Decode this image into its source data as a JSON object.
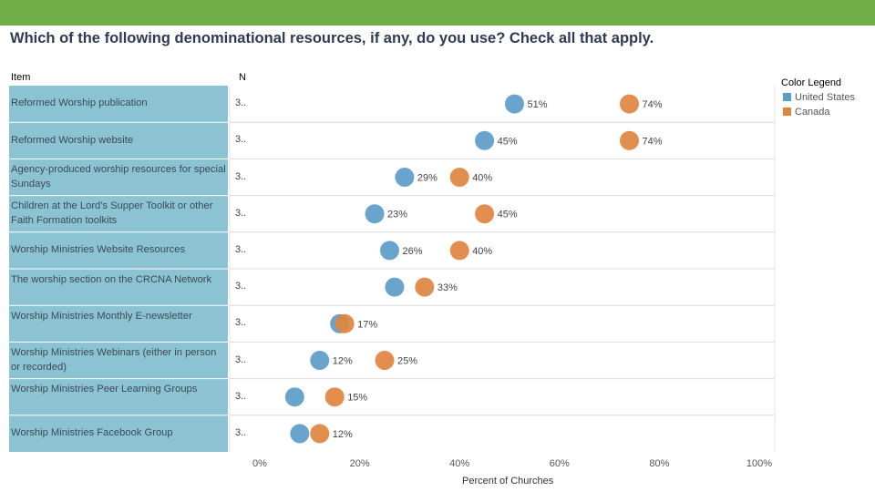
{
  "header": {
    "title": "Which of the following denominational resources, if any, do you use? Check all that apply."
  },
  "table": {
    "item_header": "Item",
    "n_header": "N"
  },
  "legend": {
    "title": "Color Legend",
    "entries": [
      {
        "name": "United States",
        "color": "#5b9cc8"
      },
      {
        "name": "Canada",
        "color": "#e0843f"
      }
    ]
  },
  "chart_data": {
    "type": "scatter",
    "title": "Which of the following denominational resources, if any, do you use? Check all that apply.",
    "xlabel": "Percent of Churches",
    "ylabel": "Item",
    "xlim": [
      0,
      100
    ],
    "x_ticks": [
      "0%",
      "20%",
      "40%",
      "60%",
      "80%",
      "100%"
    ],
    "categories": [
      "Reformed Worship publication",
      "Reformed Worship website",
      "Agency-produced worship resources for special Sundays",
      "Children at the Lord's Supper Toolkit or other Faith Formation toolkits",
      "Worship Ministries Website Resources",
      "The worship section on the CRCNA Network",
      "Worship Ministries Monthly E-newsletter",
      "Worship Ministries Webinars (either in person or recorded)",
      "Worship Ministries Peer Learning Groups",
      "Worship Ministries Facebook Group"
    ],
    "n_values": [
      "3..",
      "3..",
      "3..",
      "3..",
      "3..",
      "3..",
      "3..",
      "3..",
      "3..",
      "3.."
    ],
    "series": [
      {
        "name": "United States",
        "color": "#5b9cc8",
        "values": [
          51,
          45,
          29,
          23,
          26,
          27,
          16,
          12,
          7,
          8
        ],
        "labels": [
          "51%",
          "45%",
          "29%",
          "23%",
          "26%",
          "",
          "",
          "12%",
          "",
          ""
        ]
      },
      {
        "name": "Canada",
        "color": "#e0843f",
        "values": [
          74,
          74,
          40,
          45,
          40,
          33,
          17,
          25,
          15,
          12
        ],
        "labels": [
          "74%",
          "74%",
          "40%",
          "45%",
          "40%",
          "33%",
          "17%",
          "25%",
          "15%",
          "12%"
        ]
      }
    ]
  }
}
